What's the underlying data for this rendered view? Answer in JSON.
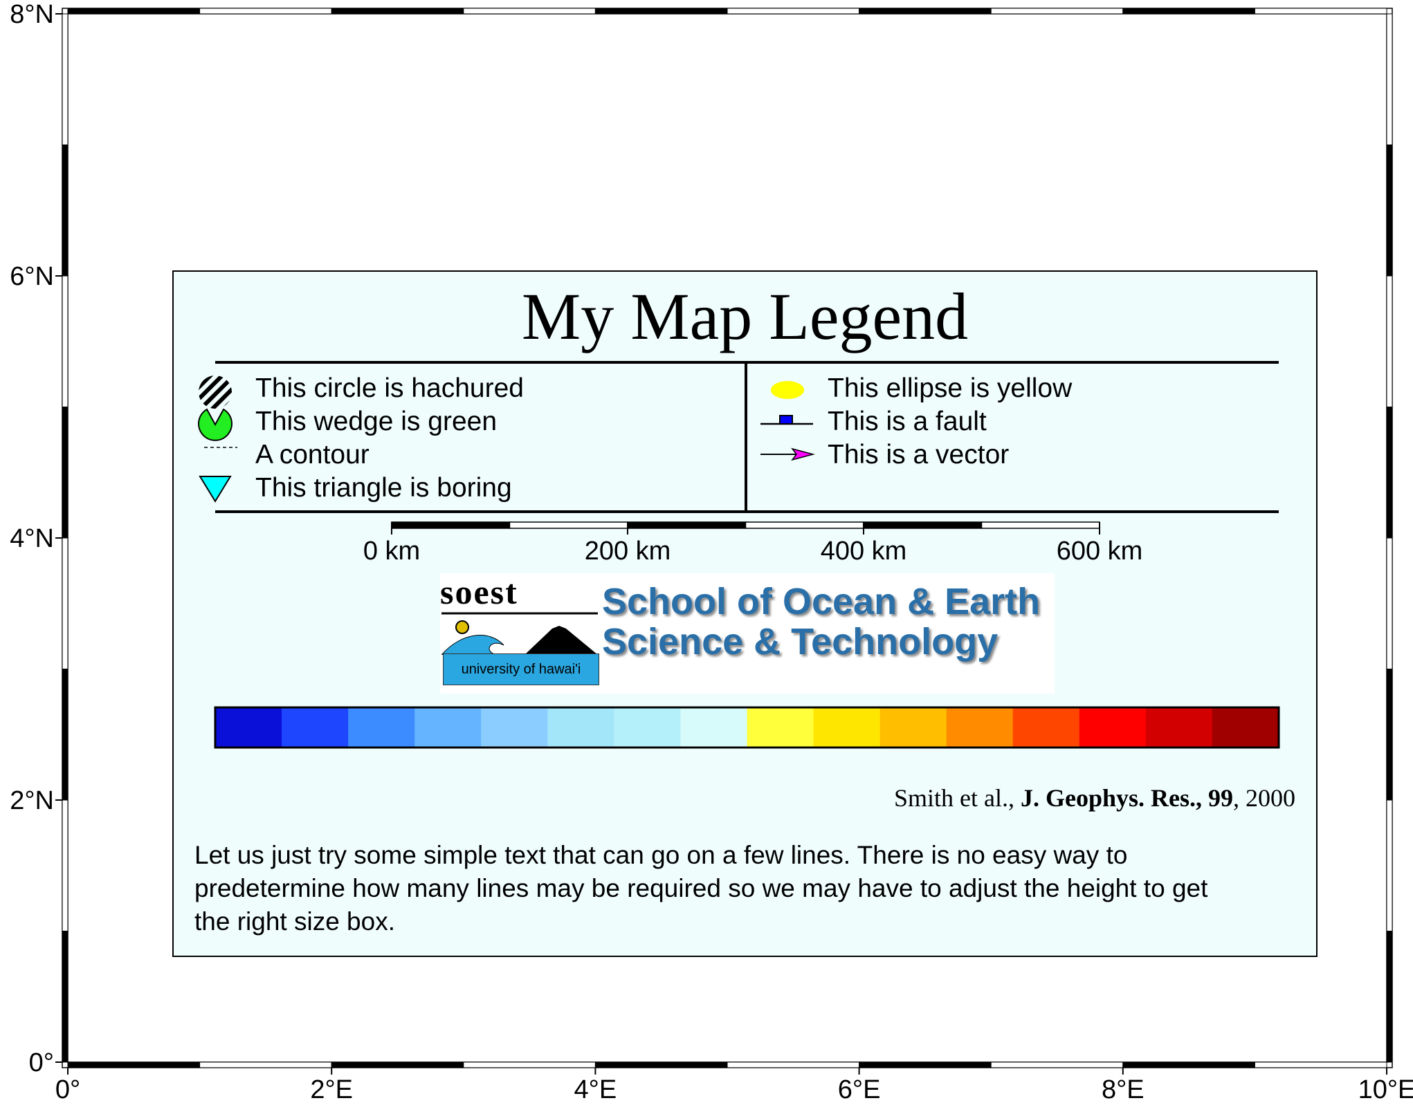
{
  "map": {
    "lon_ticks": [
      "0°",
      "2°E",
      "4°E",
      "6°E",
      "8°E",
      "10°E"
    ],
    "lat_ticks": [
      "0°",
      "2°N",
      "4°N",
      "6°N",
      "8°N"
    ],
    "lon_range": [
      0,
      10
    ],
    "lat_range": [
      0,
      8
    ]
  },
  "legend": {
    "title": "My Map Legend",
    "left_items": [
      {
        "symbol": "hachured-circle-icon",
        "label": "This circle is hachured"
      },
      {
        "symbol": "green-wedge-icon",
        "label": "This wedge is green"
      },
      {
        "symbol": "dashed-contour-icon",
        "label": "A contour"
      },
      {
        "symbol": "cyan-triangle-icon",
        "label": "This triangle is boring"
      }
    ],
    "right_items": [
      {
        "symbol": "yellow-ellipse-icon",
        "label": "This ellipse is yellow"
      },
      {
        "symbol": "fault-line-icon",
        "label": "This is a fault"
      },
      {
        "symbol": "vector-arrow-icon",
        "label": "This is a vector"
      }
    ],
    "scale_bar": {
      "labels": [
        "0 km",
        "200 km",
        "400 km",
        "600 km"
      ],
      "max_km": 600
    },
    "logo": {
      "brand": "soest",
      "line1": "School of Ocean & Earth",
      "line2": "Science & Technology",
      "university": "university of hawai'i"
    },
    "color_bar": [
      "#0a10d8",
      "#1e46ff",
      "#3c8cff",
      "#64b4ff",
      "#8ccdff",
      "#a3e6fa",
      "#b4f0fa",
      "#d7fbfa",
      "#ffff3c",
      "#ffe600",
      "#ffbe00",
      "#ff8c00",
      "#ff4600",
      "#ff0000",
      "#d20000",
      "#a00000"
    ],
    "citation": {
      "authors": "Smith et al., ",
      "journal": "J. Geophys. Res., 99",
      "year": ", 2000"
    },
    "paragraph_lines": [
      "Let us just try some simple text that can go on a few lines.  There is no easy way to",
      "predetermine how many lines may be required so we may have to adjust the height to get",
      "the right size box."
    ]
  },
  "colors": {
    "panel_bg": "#f0fdfd",
    "ellipse": "#ffff00",
    "wedge": "#22ee22",
    "triangle": "#00ffff",
    "vector_head": "#ff00ff",
    "fault_box": "#0000ff"
  }
}
